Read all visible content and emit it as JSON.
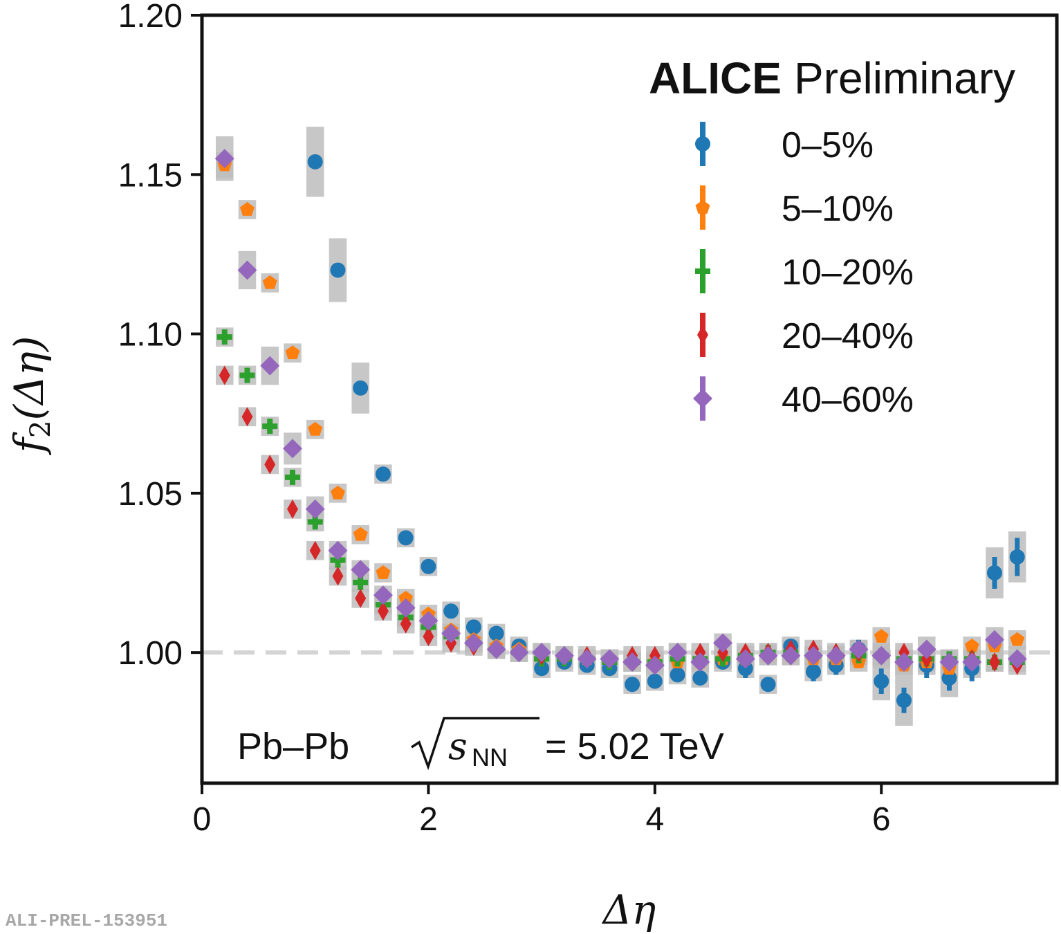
{
  "chart_data": {
    "type": "scatter",
    "title": "",
    "xlabel": "Δη",
    "ylabel_main": "f",
    "ylabel_sub": "2",
    "ylabel_arg": "(Δη)",
    "xlim": [
      0,
      7.55
    ],
    "ylim": [
      0.959,
      1.2
    ],
    "xticks": [
      0,
      2,
      4,
      6
    ],
    "xtick_labels": [
      "0",
      "2",
      "4",
      "6"
    ],
    "yticks": [
      1.0,
      1.05,
      1.1,
      1.15,
      1.2
    ],
    "ytick_labels": [
      "1.00",
      "1.05",
      "1.10",
      "1.15",
      "1.20"
    ],
    "reference_line": 1.0,
    "reference_line_color": "#d4d4d4",
    "syst_box_color": "#bdbdbd",
    "header_bold": "ALICE",
    "header_normal": "Preliminary",
    "collision_label": "Pb–Pb",
    "energy_symbol": "s",
    "energy_subscript": "NN",
    "energy_value": "= 5.02 TeV",
    "x": [
      0.2,
      0.4,
      0.6,
      0.8,
      1.0,
      1.2,
      1.4,
      1.6,
      1.8,
      2.0,
      2.2,
      2.4,
      2.6,
      2.8,
      3.0,
      3.2,
      3.4,
      3.6,
      3.8,
      4.0,
      4.2,
      4.4,
      4.6,
      4.8,
      5.0,
      5.2,
      5.4,
      5.6,
      5.8,
      6.0,
      6.2,
      6.4,
      6.6,
      6.8,
      7.0,
      7.2
    ],
    "series": [
      {
        "name": "0–5%",
        "marker": "circle",
        "color": "#1f77b4",
        "values": [
          null,
          null,
          null,
          null,
          1.154,
          1.12,
          1.083,
          1.056,
          1.036,
          1.027,
          1.013,
          1.008,
          1.006,
          1.002,
          0.995,
          0.997,
          0.996,
          0.995,
          0.99,
          0.991,
          0.993,
          0.992,
          0.997,
          0.995,
          0.99,
          1.002,
          0.994,
          0.996,
          1.001,
          0.991,
          0.985,
          0.996,
          0.992,
          0.995,
          1.025,
          1.03
        ],
        "errors": [
          0,
          0,
          0,
          0,
          0.002,
          0.002,
          0.002,
          0.002,
          0.002,
          0.002,
          0.002,
          0.002,
          0.002,
          0.002,
          0.002,
          0.002,
          0.002,
          0.002,
          0.002,
          0.002,
          0.002,
          0.002,
          0.002,
          0.003,
          0.002,
          0.002,
          0.003,
          0.003,
          0.003,
          0.004,
          0.004,
          0.004,
          0.004,
          0.004,
          0.005,
          0.006
        ],
        "syst": [
          0,
          0,
          0,
          0,
          0.011,
          0.01,
          0.008,
          0.003,
          0.003,
          0.003,
          0.003,
          0.003,
          0.003,
          0.003,
          0.003,
          0.003,
          0.003,
          0.003,
          0.003,
          0.003,
          0.003,
          0.003,
          0.003,
          0.003,
          0.003,
          0.003,
          0.003,
          0.003,
          0.003,
          0.006,
          0.008,
          0.003,
          0.006,
          0.003,
          0.008,
          0.008
        ]
      },
      {
        "name": "5–10%",
        "marker": "pentagon",
        "color": "#ff7f0e",
        "values": [
          1.153,
          1.139,
          1.116,
          1.094,
          1.07,
          1.05,
          1.037,
          1.025,
          1.017,
          1.012,
          1.007,
          1.004,
          1.002,
          1.001,
          1.0,
          0.999,
          0.998,
          0.998,
          0.997,
          0.997,
          0.997,
          0.997,
          0.998,
          0.998,
          0.999,
          0.999,
          0.998,
          0.998,
          0.997,
          1.005,
          0.996,
          0.997,
          0.995,
          1.002,
          1.002,
          1.004
        ],
        "errors": [
          0,
          0,
          0,
          0,
          0,
          0,
          0,
          0,
          0,
          0,
          0,
          0,
          0,
          0,
          0,
          0,
          0,
          0,
          0,
          0,
          0,
          0,
          0,
          0,
          0,
          0,
          0,
          0,
          0,
          0,
          0,
          0,
          0,
          0,
          0,
          0
        ],
        "syst": [
          0.004,
          0.003,
          0.003,
          0.003,
          0.003,
          0.003,
          0.003,
          0.003,
          0.003,
          0.003,
          0.003,
          0.003,
          0.003,
          0.003,
          0.003,
          0.003,
          0.003,
          0.003,
          0.003,
          0.003,
          0.003,
          0.003,
          0.003,
          0.003,
          0.003,
          0.003,
          0.003,
          0.003,
          0.003,
          0.003,
          0.003,
          0.003,
          0.003,
          0.003,
          0.003,
          0.003
        ]
      },
      {
        "name": "10–20%",
        "marker": "cross",
        "color": "#2ca02c",
        "values": [
          1.099,
          1.087,
          1.071,
          1.055,
          1.041,
          1.029,
          1.022,
          1.015,
          1.011,
          1.008,
          1.005,
          1.003,
          1.001,
          1.0,
          0.998,
          0.998,
          0.998,
          0.997,
          0.997,
          0.997,
          0.998,
          0.998,
          0.998,
          0.999,
          1.0,
          1.0,
          0.999,
          0.999,
          0.999,
          0.999,
          0.998,
          0.998,
          0.998,
          0.998,
          0.997,
          0.997
        ],
        "errors": [
          0,
          0,
          0,
          0,
          0,
          0,
          0,
          0,
          0,
          0,
          0,
          0,
          0,
          0,
          0,
          0,
          0,
          0,
          0,
          0,
          0,
          0,
          0,
          0,
          0,
          0,
          0,
          0,
          0,
          0,
          0,
          0,
          0,
          0,
          0,
          0
        ],
        "syst": [
          0.003,
          0.003,
          0.003,
          0.003,
          0.003,
          0.003,
          0.003,
          0.003,
          0.003,
          0.003,
          0.003,
          0.003,
          0.003,
          0.003,
          0.003,
          0.003,
          0.003,
          0.003,
          0.003,
          0.003,
          0.003,
          0.003,
          0.003,
          0.003,
          0.003,
          0.003,
          0.003,
          0.003,
          0.003,
          0.003,
          0.003,
          0.003,
          0.003,
          0.003,
          0.003,
          0.003
        ]
      },
      {
        "name": "20–40%",
        "marker": "thin_diamond",
        "color": "#d62728",
        "values": [
          1.087,
          1.074,
          1.059,
          1.045,
          1.032,
          1.024,
          1.017,
          1.013,
          1.009,
          1.005,
          1.003,
          1.002,
          1.001,
          1.0,
          0.999,
          0.999,
          0.999,
          0.998,
          0.999,
          0.999,
          1.0,
          1.0,
          1.0,
          1.0,
          1.0,
          1.001,
          1.001,
          1.0,
          1.0,
          0.999,
          1.0,
          0.998,
          0.997,
          0.998,
          0.997,
          0.996
        ],
        "errors": [
          0,
          0,
          0,
          0,
          0,
          0,
          0,
          0,
          0,
          0,
          0,
          0,
          0,
          0,
          0,
          0,
          0,
          0,
          0,
          0,
          0,
          0,
          0,
          0,
          0,
          0,
          0,
          0,
          0,
          0,
          0,
          0,
          0,
          0,
          0,
          0
        ],
        "syst": [
          0.003,
          0.003,
          0.003,
          0.003,
          0.003,
          0.003,
          0.003,
          0.003,
          0.003,
          0.003,
          0.003,
          0.003,
          0.003,
          0.003,
          0.003,
          0.003,
          0.003,
          0.003,
          0.003,
          0.003,
          0.003,
          0.003,
          0.003,
          0.003,
          0.003,
          0.003,
          0.003,
          0.003,
          0.003,
          0.003,
          0.003,
          0.003,
          0.003,
          0.003,
          0.003,
          0.003
        ]
      },
      {
        "name": "40–60%",
        "marker": "diamond",
        "color": "#9467bd",
        "values": [
          1.155,
          1.12,
          1.09,
          1.064,
          1.045,
          1.032,
          1.026,
          1.018,
          1.014,
          1.01,
          1.006,
          1.003,
          1.001,
          1.0,
          1.0,
          0.999,
          0.998,
          0.998,
          0.997,
          0.996,
          1.0,
          0.997,
          1.003,
          0.998,
          0.999,
          0.999,
          0.999,
          0.999,
          1.001,
          0.999,
          0.997,
          1.001,
          0.997,
          0.997,
          1.004,
          0.998
        ],
        "errors": [
          0,
          0,
          0,
          0,
          0,
          0,
          0,
          0,
          0,
          0,
          0,
          0,
          0,
          0,
          0,
          0,
          0,
          0,
          0,
          0,
          0,
          0,
          0,
          0,
          0,
          0,
          0,
          0,
          0,
          0,
          0,
          0,
          0,
          0,
          0,
          0
        ],
        "syst": [
          0.007,
          0.006,
          0.006,
          0.005,
          0.004,
          0.003,
          0.003,
          0.003,
          0.003,
          0.003,
          0.003,
          0.003,
          0.003,
          0.003,
          0.003,
          0.003,
          0.003,
          0.003,
          0.003,
          0.003,
          0.003,
          0.003,
          0.003,
          0.003,
          0.003,
          0.003,
          0.003,
          0.003,
          0.003,
          0.004,
          0.004,
          0.004,
          0.004,
          0.004,
          0.004,
          0.004
        ]
      }
    ]
  },
  "footer": {
    "watermark": "ALI-PREL-153951"
  }
}
